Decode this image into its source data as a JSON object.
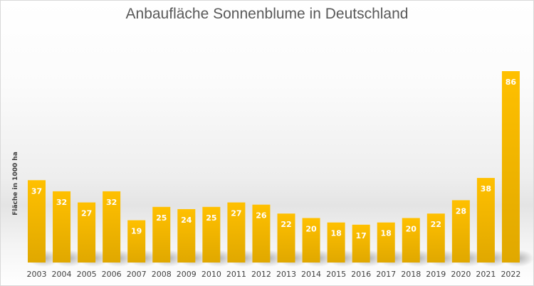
{
  "chart_data": {
    "type": "bar",
    "title": "Anbaufläche Sonnenblume in Deutschland",
    "xlabel": "",
    "ylabel": "Fläche in 1000 ha",
    "categories": [
      "2003",
      "2004",
      "2005",
      "2006",
      "2007",
      "2008",
      "2009",
      "2010",
      "2011",
      "2012",
      "2013",
      "2014",
      "2015",
      "2016",
      "2017",
      "2018",
      "2019",
      "2020",
      "2021",
      "2022"
    ],
    "values": [
      37,
      32,
      27,
      32,
      19,
      25,
      24,
      25,
      27,
      26,
      22,
      20,
      18,
      17,
      18,
      20,
      22,
      28,
      38,
      86
    ],
    "ylim": [
      0,
      86
    ],
    "grid": false,
    "legend": "none",
    "data_labels": true,
    "colors": {
      "bar_top": "#ffc000",
      "bar_bottom": "#e0a800",
      "label": "#ffffff",
      "title": "#595959",
      "axis_text": "#404040"
    }
  }
}
